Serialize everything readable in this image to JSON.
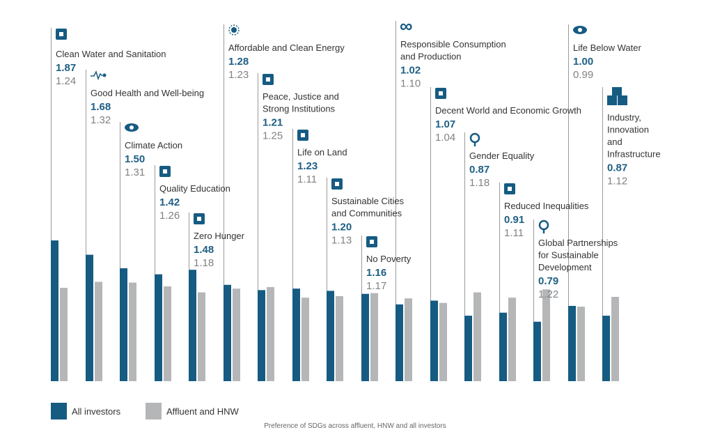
{
  "chart_data": {
    "type": "bar",
    "title": "",
    "caption": "Preference of SDGs across affluent, HNW and all investors",
    "xlabel": "",
    "ylabel": "",
    "ylim": [
      0,
      2.0
    ],
    "grid": false,
    "legend_placement": "bottom-left",
    "colors": {
      "All investors": "#165b82",
      "Affluent and HNW": "#b5b6b8",
      "value_primary_text": "#1d5f84",
      "value_secondary_text": "#808285"
    },
    "categories": [
      {
        "name": [
          "Clean Water and Sanitation"
        ],
        "icon": "water-drop-icon"
      },
      {
        "name": [
          "Good Health and Well-being"
        ],
        "icon": "heartbeat-icon"
      },
      {
        "name": [
          "Climate Action"
        ],
        "icon": "eye-globe-icon"
      },
      {
        "name": [
          "Quality Education"
        ],
        "icon": "book-icon"
      },
      {
        "name": [
          "Zero Hunger"
        ],
        "icon": "bowl-icon"
      },
      {
        "name": [
          "Affordable and Clean Energy"
        ],
        "icon": "sun-icon"
      },
      {
        "name": [
          "Peace, Justice and",
          "Strong Institutions"
        ],
        "icon": "dove-icon"
      },
      {
        "name": [
          "Life on Land"
        ],
        "icon": "tree-icon"
      },
      {
        "name": [
          "Sustainable Cities",
          "and Communities"
        ],
        "icon": "buildings-icon"
      },
      {
        "name": [
          "No Poverty"
        ],
        "icon": "family-icon"
      },
      {
        "name": [
          "Responsible Consumption",
          "and Production"
        ],
        "icon": "infinity-icon"
      },
      {
        "name": [
          "Decent World and Economic Growth"
        ],
        "icon": "growth-chart-icon"
      },
      {
        "name": [
          "Gender Equality"
        ],
        "icon": "gender-icon"
      },
      {
        "name": [
          "Reduced Inequalities"
        ],
        "icon": "equality-icon"
      },
      {
        "name": [
          "Global Partnerships",
          "for Sustainable",
          "Development"
        ],
        "icon": "flower-icon"
      },
      {
        "name": [
          "Life Below Water"
        ],
        "icon": "fish-icon"
      },
      {
        "name": [
          "Industry,",
          "Innovation",
          "and",
          "Infrastructure"
        ],
        "icon": "cubes-icon"
      }
    ],
    "series": [
      {
        "name": "All investors",
        "values": [
          1.87,
          1.68,
          1.5,
          1.42,
          1.48,
          1.28,
          1.21,
          1.23,
          1.2,
          1.16,
          1.02,
          1.07,
          0.87,
          0.91,
          0.79,
          1.0,
          0.87
        ]
      },
      {
        "name": "Affluent and HNW",
        "values": [
          1.24,
          1.32,
          1.31,
          1.26,
          1.18,
          1.23,
          1.25,
          1.11,
          1.13,
          1.17,
          1.1,
          1.04,
          1.18,
          1.11,
          1.22,
          0.99,
          1.12
        ]
      }
    ]
  }
}
